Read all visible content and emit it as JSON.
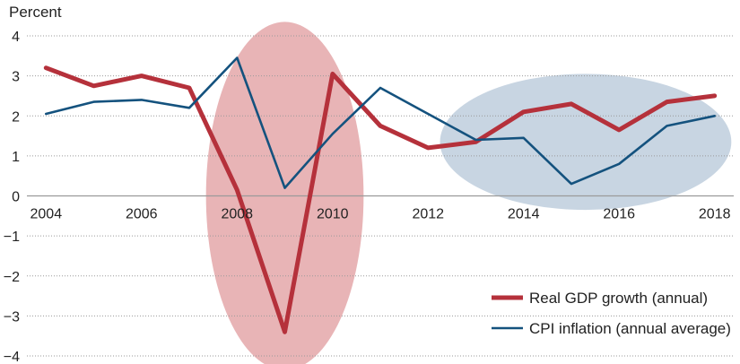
{
  "chart_data": {
    "type": "line",
    "ylabel": "Percent",
    "xlabel": "",
    "ylim": [
      -4,
      4
    ],
    "xlim": [
      2003.6,
      2018.4
    ],
    "yticks": [
      4,
      3,
      2,
      1,
      0,
      -1,
      -2,
      -3,
      -4
    ],
    "ytick_labels": [
      "4",
      "3",
      "2",
      "1",
      "0",
      "−1",
      "−2",
      "−3",
      "−4"
    ],
    "xticks": [
      2004,
      2006,
      2008,
      2010,
      2012,
      2014,
      2016,
      2018
    ],
    "xtick_labels": [
      "2004",
      "2006",
      "2008",
      "2010",
      "2012",
      "2014",
      "2016",
      "2018"
    ],
    "grid": "horizontal",
    "legend_position": "bottom-right",
    "x": [
      2004,
      2005,
      2006,
      2007,
      2008,
      2009,
      2010,
      2011,
      2012,
      2013,
      2014,
      2015,
      2016,
      2017,
      2018
    ],
    "series": [
      {
        "name": "Real GDP growth (annual)",
        "color": "#b5313b",
        "values": [
          3.2,
          2.75,
          3.0,
          2.7,
          0.15,
          -3.4,
          3.05,
          1.75,
          1.2,
          1.35,
          2.1,
          2.3,
          1.65,
          2.35,
          2.5
        ]
      },
      {
        "name": "CPI inflation (annual average)",
        "color": "#14527e",
        "values": [
          2.05,
          2.35,
          2.4,
          2.2,
          3.45,
          0.2,
          1.55,
          2.7,
          2.05,
          1.4,
          1.45,
          0.3,
          0.8,
          1.75,
          2.0
        ]
      }
    ],
    "highlights": [
      {
        "shape": "ellipse",
        "color": "#e8b4b6",
        "x_center": 2009.0,
        "y_center": 0.0,
        "x_radius": 1.65,
        "y_radius": 4.35
      },
      {
        "shape": "ellipse",
        "color": "#c8d5e2",
        "x_center": 2015.3,
        "y_center": 1.35,
        "x_radius": 3.05,
        "y_radius": 1.7
      }
    ]
  }
}
